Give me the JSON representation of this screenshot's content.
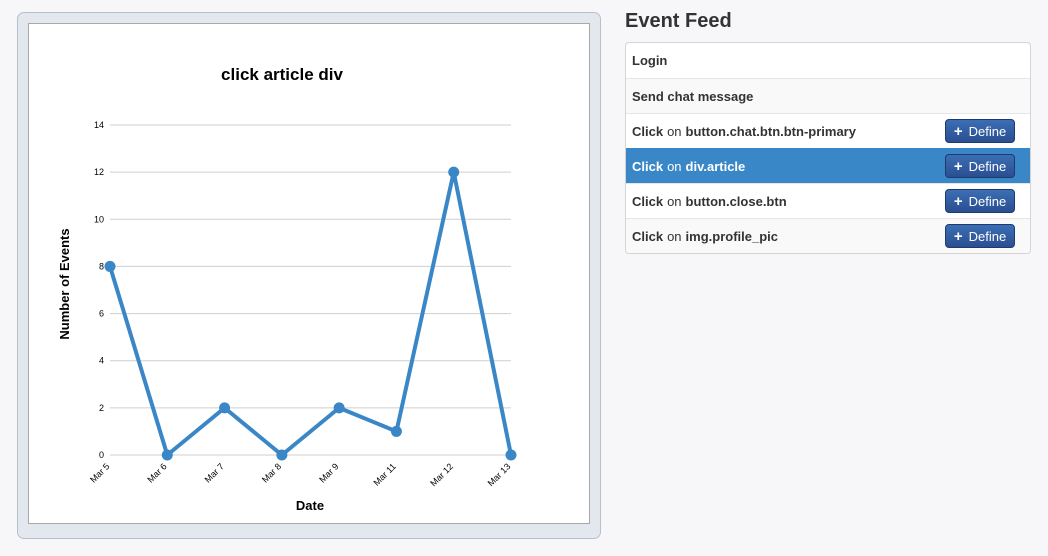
{
  "chart_data": {
    "type": "line",
    "title": "click article div",
    "xlabel": "Date",
    "ylabel": "Number of Events",
    "categories": [
      "Mar 5",
      "Mar 6",
      "Mar 7",
      "Mar 8",
      "Mar 9",
      "Mar 11",
      "Mar 12",
      "Mar 13"
    ],
    "values": [
      8,
      0,
      2,
      0,
      2,
      1,
      12,
      0
    ],
    "ylim": [
      0,
      14
    ],
    "yticks": [
      0,
      2,
      4,
      6,
      8,
      10,
      12,
      14
    ],
    "grid": true,
    "color": "#3a87c8"
  },
  "feed": {
    "title": "Event Feed",
    "define_label": "Define",
    "on_word": "on",
    "rows": [
      {
        "verb": "Login"
      },
      {
        "verb": "Send chat message"
      },
      {
        "verb": "Click",
        "target": "button.chat.btn.btn-primary"
      },
      {
        "verb": "Click",
        "target": "div.article"
      },
      {
        "verb": "Click",
        "target": "button.close.btn"
      },
      {
        "verb": "Click",
        "target": "img.profile_pic"
      }
    ]
  }
}
